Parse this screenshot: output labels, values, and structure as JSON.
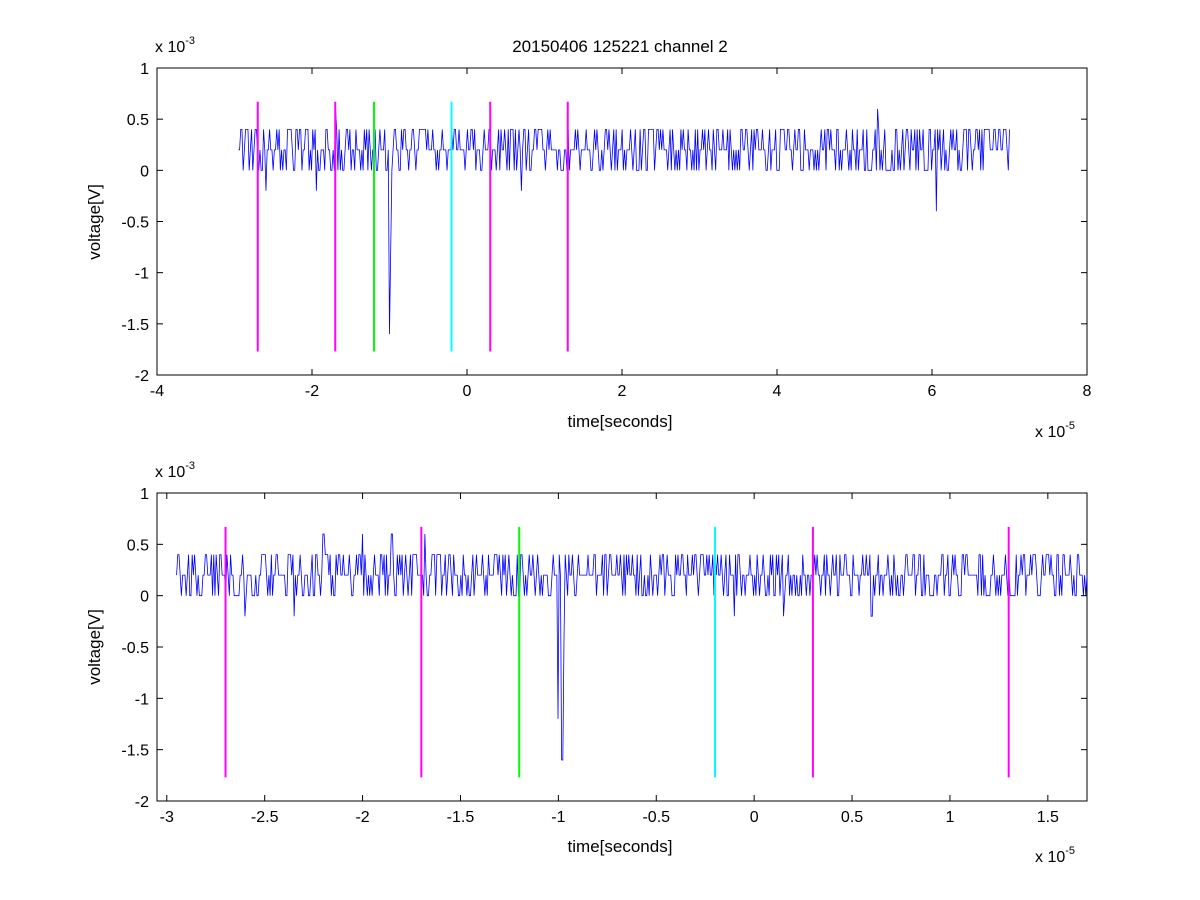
{
  "figure_title": "20150406 125221 channel 2",
  "chart_data": [
    {
      "type": "line",
      "title": "20150406 125221 channel 2",
      "xlabel": "time[seconds]",
      "ylabel": "voltage[V]",
      "x_exponent_label": "x 10",
      "x_exponent": "-5",
      "y_exponent_label": "x 10",
      "y_exponent": "-3",
      "xlim": [
        -4e-05,
        8e-05
      ],
      "ylim": [
        -0.002,
        0.001
      ],
      "xticks": [
        -4e-05,
        -2e-05,
        0,
        2e-05,
        4e-05,
        6e-05,
        8e-05
      ],
      "xtick_labels": [
        "-4",
        "-2",
        "0",
        "2",
        "4",
        "6",
        "8"
      ],
      "yticks": [
        0.001,
        0.0005,
        0,
        -0.0005,
        -0.001,
        -0.0015,
        -0.002
      ],
      "ytick_labels": [
        "1",
        "0.5",
        "0",
        "-0.5",
        "-1",
        "-1.5",
        "-2"
      ],
      "grid": false,
      "signal": {
        "color": "#0000ff",
        "x_start": -2.95e-05,
        "x_end": 7e-05,
        "baseline": 0.0002,
        "levels": [
          0,
          0.0002,
          0.0004
        ],
        "spikes": [
          {
            "x": -2.6e-05,
            "y": -0.0002
          },
          {
            "x": -1.95e-05,
            "y": -0.0002
          },
          {
            "x": -1.7e-05,
            "y": 0.0006
          },
          {
            "x": -1e-05,
            "y": -0.0016
          },
          {
            "x": -9.8e-06,
            "y": -0.0008
          },
          {
            "x": 7e-06,
            "y": -0.0002
          },
          {
            "x": 5.3e-05,
            "y": 0.0006
          },
          {
            "x": 6.05e-05,
            "y": -0.0004
          }
        ]
      },
      "markers": [
        {
          "x": -2.7e-05,
          "color": "#ff00ff",
          "y_bottom": -0.00177,
          "y_top": 0.00067
        },
        {
          "x": -1.7e-05,
          "color": "#ff00ff",
          "y_bottom": -0.00177,
          "y_top": 0.00067
        },
        {
          "x": -1.2e-05,
          "color": "#00ff00",
          "y_bottom": -0.00177,
          "y_top": 0.00067
        },
        {
          "x": -2e-06,
          "color": "#00ffff",
          "y_bottom": -0.00177,
          "y_top": 0.00067
        },
        {
          "x": 3e-06,
          "color": "#ff00ff",
          "y_bottom": -0.00177,
          "y_top": 0.00067
        },
        {
          "x": 1.3e-05,
          "color": "#ff00ff",
          "y_bottom": -0.00177,
          "y_top": 0.00067
        }
      ]
    },
    {
      "type": "line",
      "title": "",
      "xlabel": "time[seconds]",
      "ylabel": "voltage[V]",
      "x_exponent_label": "x 10",
      "x_exponent": "-5",
      "y_exponent_label": "x 10",
      "y_exponent": "-3",
      "xlim": [
        -3.05e-05,
        1.7e-05
      ],
      "ylim": [
        -0.002,
        0.001
      ],
      "xticks": [
        -3e-05,
        -2.5e-05,
        -2e-05,
        -1.5e-05,
        -1e-05,
        -5e-06,
        0,
        5e-06,
        1e-05,
        1.5e-05
      ],
      "xtick_labels": [
        "-3",
        "-2.5",
        "-2",
        "-1.5",
        "-1",
        "-0.5",
        "0",
        "0.5",
        "1",
        "1.5"
      ],
      "yticks": [
        0.001,
        0.0005,
        0,
        -0.0005,
        -0.001,
        -0.0015,
        -0.002
      ],
      "ytick_labels": [
        "1",
        "0.5",
        "0",
        "-0.5",
        "-1",
        "-1.5",
        "-2"
      ],
      "grid": false,
      "signal": {
        "color": "#0000ff",
        "x_start": -2.95e-05,
        "x_end": 1.7e-05,
        "baseline": 0.0002,
        "levels": [
          0,
          0.0002,
          0.0004
        ],
        "spikes": [
          {
            "x": -2.6e-05,
            "y": -0.0002
          },
          {
            "x": -2.35e-05,
            "y": -0.0002
          },
          {
            "x": -2.2e-05,
            "y": 0.0006
          },
          {
            "x": -2e-05,
            "y": 0.0006
          },
          {
            "x": -1.85e-05,
            "y": 0.0006
          },
          {
            "x": -1.68e-05,
            "y": 0.0006
          },
          {
            "x": -1e-05,
            "y": -0.0012
          },
          {
            "x": -9.8e-06,
            "y": -0.0016
          },
          {
            "x": -9.7e-06,
            "y": -0.0004
          },
          {
            "x": -1e-06,
            "y": -0.0002
          },
          {
            "x": 1.5e-06,
            "y": -0.0002
          },
          {
            "x": 6e-06,
            "y": -0.0002
          }
        ]
      },
      "markers": [
        {
          "x": -2.7e-05,
          "color": "#ff00ff",
          "y_bottom": -0.00177,
          "y_top": 0.00067
        },
        {
          "x": -1.7e-05,
          "color": "#ff00ff",
          "y_bottom": -0.00177,
          "y_top": 0.00067
        },
        {
          "x": -1.2e-05,
          "color": "#00ff00",
          "y_bottom": -0.00177,
          "y_top": 0.00067
        },
        {
          "x": -2e-06,
          "color": "#00ffff",
          "y_bottom": -0.00177,
          "y_top": 0.00067
        },
        {
          "x": 3e-06,
          "color": "#ff00ff",
          "y_bottom": -0.00177,
          "y_top": 0.00067
        },
        {
          "x": 1.3e-05,
          "color": "#ff00ff",
          "y_bottom": -0.00177,
          "y_top": 0.00067
        }
      ]
    }
  ]
}
